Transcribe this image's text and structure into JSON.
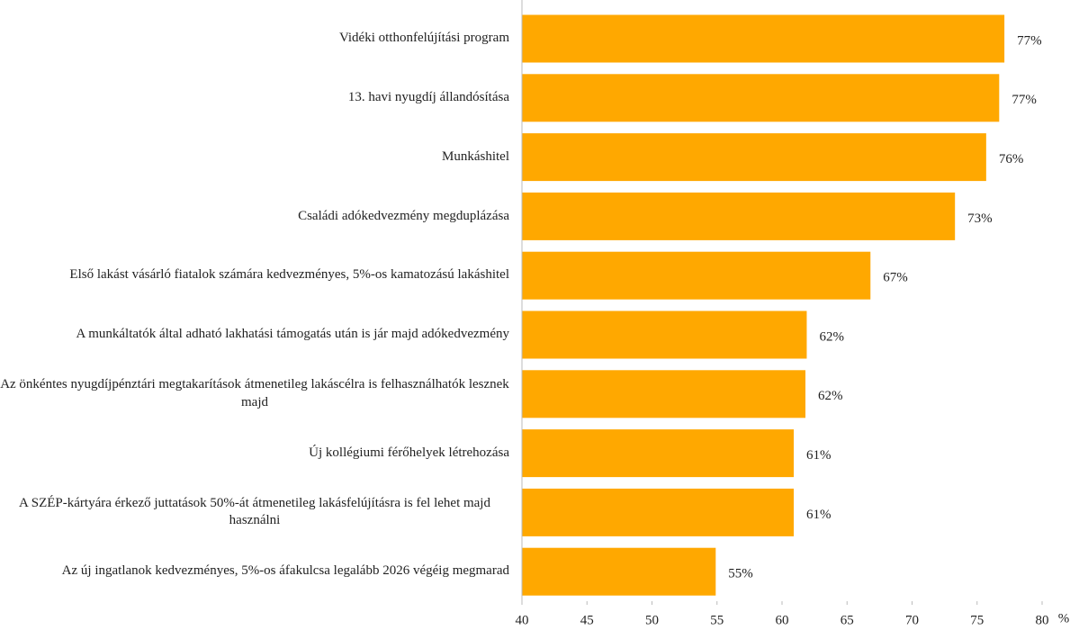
{
  "chart_data": {
    "type": "barh",
    "categories": [
      "Vidéki otthonfelújítási program",
      "13. havi nyugdíj állandósítása",
      "Munkáshitel",
      "Családi adókedvezmény megduplázása",
      "Első lakást vásárló fiatalok számára kedvezményes, 5%-os kamatozású lakáshitel",
      "A munkáltatók által adható lakhatási támogatás után is jár majd adókedvezmény",
      "Az önkéntes nyugdíjpénztári megtakarítások átmenetileg lakáscélra is felhasználhatók lesznek majd",
      "Új kollégiumi férőhelyek létrehozása",
      "A SZÉP-kártyára érkező juttatások 50%-át átmenetileg lakásfelújításra is fel lehet majd használni",
      "Az új ingatlanok kedvezményes, 5%-os áfakulcsa legalább 2026 végéig megmarad"
    ],
    "values": [
      77.1,
      76.7,
      75.7,
      73.3,
      66.8,
      61.9,
      61.8,
      60.9,
      60.9,
      54.9
    ],
    "value_labels": [
      "77%",
      "77%",
      "76%",
      "73%",
      "67%",
      "62%",
      "62%",
      "61%",
      "61%",
      "55%"
    ],
    "color": "#ffa800",
    "xlim": [
      40,
      80
    ],
    "xticks": [
      40,
      45,
      50,
      55,
      60,
      65,
      70,
      75,
      80
    ],
    "x_unit_label": "%",
    "grid": false
  }
}
